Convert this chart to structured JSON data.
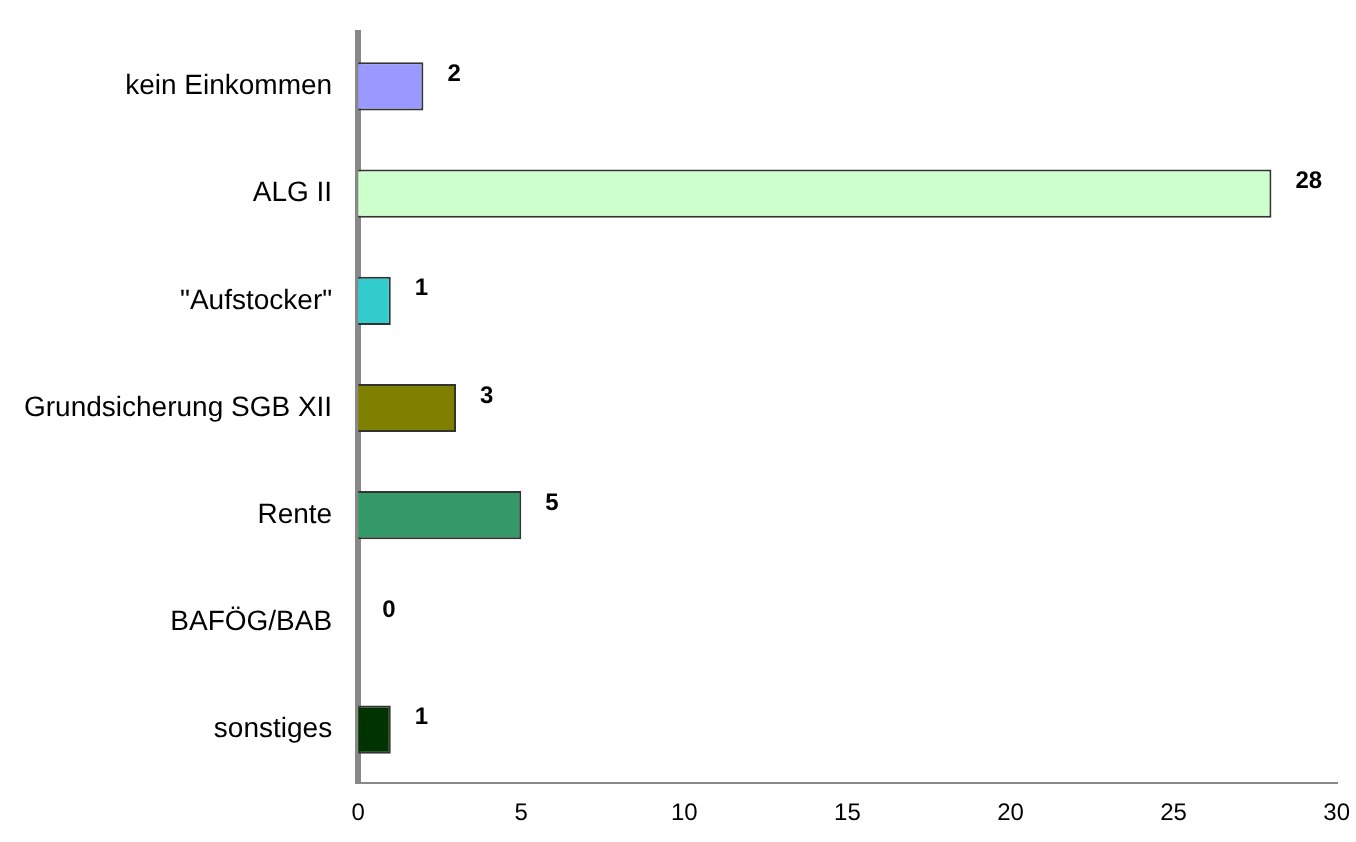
{
  "chart_data": {
    "type": "bar",
    "orientation": "horizontal",
    "categories": [
      "kein Einkommen",
      "ALG II",
      "\"Aufstocker\"",
      "Grundsicherung SGB XII",
      "Rente",
      "BAFÖG/BAB",
      "sonstiges"
    ],
    "values": [
      2,
      28,
      1,
      3,
      5,
      0,
      1
    ],
    "colors": [
      "#9999ff",
      "#ccffcc",
      "#33cccc",
      "#808000",
      "#339966",
      "#99cc00",
      "#003300"
    ],
    "xlim": [
      0,
      30
    ],
    "xticks": [
      0,
      5,
      10,
      15,
      20,
      25,
      30
    ],
    "grid": false,
    "legend": false,
    "data_labels": true
  }
}
